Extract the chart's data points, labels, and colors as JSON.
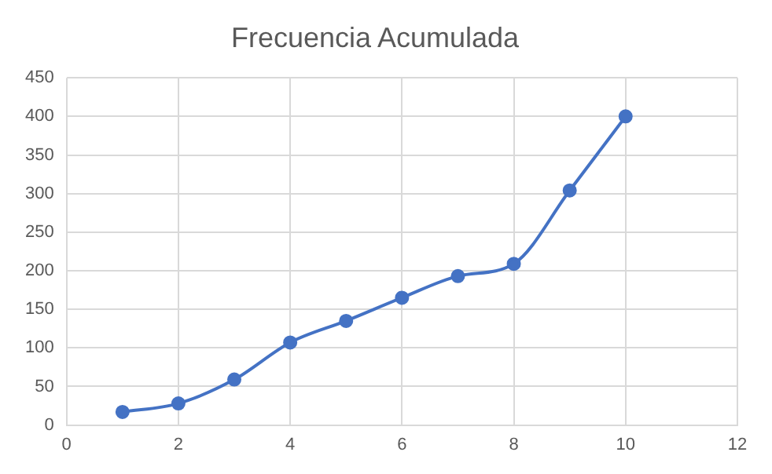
{
  "chart_data": {
    "type": "line",
    "title": "Frecuencia Acumulada",
    "x": [
      1,
      2,
      3,
      4,
      5,
      6,
      7,
      8,
      9,
      10
    ],
    "series": [
      {
        "color": "#4472c4",
        "values": [
          17,
          28,
          59,
          107,
          135,
          165,
          193,
          209,
          304,
          400
        ]
      }
    ],
    "xlim": [
      0,
      12
    ],
    "xticks": [
      0,
      2,
      4,
      6,
      8,
      10,
      12
    ],
    "ylim": [
      0,
      450
    ],
    "yticks": [
      0,
      50,
      100,
      150,
      200,
      250,
      300,
      350,
      400,
      450
    ],
    "grid": true,
    "legend": false,
    "marker": "circle",
    "line_style": "solid"
  }
}
